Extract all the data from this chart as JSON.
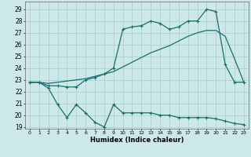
{
  "xlabel": "Humidex (Indice chaleur)",
  "bg_color": "#cce8e8",
  "grid_color": "#aacccc",
  "line_color": "#1a6e6a",
  "xlim": [
    -0.5,
    23.5
  ],
  "ylim": [
    18.85,
    29.65
  ],
  "yticks": [
    19,
    20,
    21,
    22,
    23,
    24,
    25,
    26,
    27,
    28,
    29
  ],
  "xticks": [
    0,
    1,
    2,
    3,
    4,
    5,
    6,
    7,
    8,
    9,
    10,
    11,
    12,
    13,
    14,
    15,
    16,
    17,
    18,
    19,
    20,
    21,
    22,
    23
  ],
  "line_diag_x": [
    0,
    1,
    2,
    3,
    4,
    5,
    6,
    7,
    8,
    9,
    10,
    11,
    12,
    13,
    14,
    15,
    16,
    17,
    18,
    19,
    20,
    21,
    22,
    23
  ],
  "line_diag_y": [
    22.8,
    22.8,
    22.7,
    22.8,
    22.9,
    23.0,
    23.1,
    23.3,
    23.5,
    23.7,
    24.1,
    24.5,
    24.9,
    25.3,
    25.6,
    25.9,
    26.3,
    26.7,
    27.0,
    27.2,
    27.2,
    26.7,
    24.8,
    22.8
  ],
  "line_top_x": [
    0,
    1,
    2,
    3,
    4,
    5,
    6,
    7,
    8,
    9,
    10,
    11,
    12,
    13,
    14,
    15,
    16,
    17,
    18,
    19,
    20,
    21,
    22,
    23
  ],
  "line_top_y": [
    22.8,
    22.8,
    22.5,
    22.5,
    22.4,
    22.4,
    23.0,
    23.2,
    23.5,
    24.0,
    27.3,
    27.5,
    27.6,
    28.0,
    27.8,
    27.3,
    27.5,
    28.0,
    28.0,
    29.0,
    28.8,
    24.3,
    22.8,
    22.8
  ],
  "line_bot_x": [
    0,
    1,
    2,
    3,
    4,
    5,
    6,
    7,
    8,
    9,
    10,
    11,
    12,
    13,
    14,
    15,
    16,
    17,
    18,
    19,
    20,
    21,
    22,
    23
  ],
  "line_bot_y": [
    22.8,
    22.8,
    22.3,
    20.9,
    19.8,
    20.9,
    20.2,
    19.4,
    19.0,
    20.9,
    20.2,
    20.2,
    20.2,
    20.2,
    20.0,
    20.0,
    19.8,
    19.8,
    19.8,
    19.8,
    19.7,
    19.5,
    19.3,
    19.2
  ]
}
